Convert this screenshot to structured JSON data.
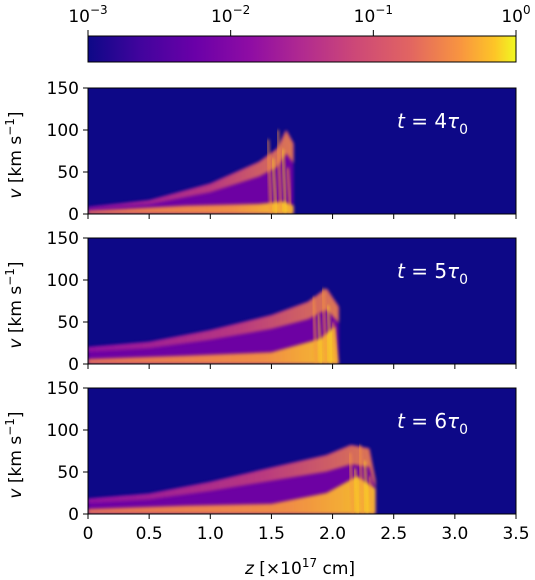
{
  "colorbar": {
    "scale": "log",
    "range": [
      0.001,
      1
    ],
    "colormap": "plasma",
    "tick_labels": [
      {
        "base": "10",
        "exp": "−3"
      },
      {
        "base": "10",
        "exp": "−2"
      },
      {
        "base": "10",
        "exp": "−1"
      },
      {
        "base": "10",
        "exp": "0"
      }
    ]
  },
  "colors": {
    "background": "#0d0887",
    "low": "#5c01a6",
    "mid": "#cc4778",
    "high": "#fdca26",
    "max": "#f0f921"
  },
  "chart_data": [
    {
      "type": "heatmap",
      "panel_label": {
        "lhs": "t",
        "eq": " = 4",
        "sym": "τ",
        "sub": "0"
      },
      "ylabel": {
        "text": "v [km s",
        "sup": "−1",
        "close": "]"
      },
      "xlim": [
        0,
        3.5
      ],
      "ylim": [
        0,
        150
      ],
      "y_ticks": [
        "0",
        "50",
        "100",
        "150"
      ],
      "features": {
        "front_z": 1.68,
        "upper_edge": [
          [
            0,
            8
          ],
          [
            0.5,
            16
          ],
          [
            1.0,
            36
          ],
          [
            1.4,
            62
          ],
          [
            1.55,
            78
          ],
          [
            1.62,
            100
          ],
          [
            1.68,
            84
          ]
        ],
        "dense_core": [
          [
            0,
            4
          ],
          [
            0.8,
            10
          ],
          [
            1.4,
            12
          ],
          [
            1.6,
            15
          ],
          [
            1.68,
            10
          ]
        ]
      }
    },
    {
      "type": "heatmap",
      "panel_label": {
        "lhs": "t",
        "eq": " = 5",
        "sym": "τ",
        "sub": "0"
      },
      "ylabel": {
        "text": "v [km s",
        "sup": "−1",
        "close": "]"
      },
      "xlim": [
        0,
        3.5
      ],
      "ylim": [
        0,
        150
      ],
      "y_ticks": [
        "0",
        "50",
        "100",
        "150"
      ],
      "features": {
        "front_z": 2.05,
        "upper_edge": [
          [
            0,
            20
          ],
          [
            0.5,
            26
          ],
          [
            1.0,
            40
          ],
          [
            1.5,
            58
          ],
          [
            1.8,
            74
          ],
          [
            1.95,
            90
          ],
          [
            2.05,
            68
          ]
        ],
        "dense_core": [
          [
            0,
            6
          ],
          [
            0.8,
            10
          ],
          [
            1.5,
            14
          ],
          [
            1.9,
            30
          ],
          [
            2.02,
            45
          ]
        ]
      }
    },
    {
      "type": "heatmap",
      "panel_label": {
        "lhs": "t",
        "eq": " = 6",
        "sym": "τ",
        "sub": "0"
      },
      "ylabel": {
        "text": "v [km s",
        "sup": "−1",
        "close": "]"
      },
      "xlim": [
        0,
        3.5
      ],
      "ylim": [
        0,
        150
      ],
      "y_ticks": [
        "0",
        "50",
        "100",
        "150"
      ],
      "x_ticks": [
        "0",
        "0.5",
        "1.0",
        "1.5",
        "2.0",
        "2.5",
        "3.0",
        "3.5"
      ],
      "features": {
        "front_z": 2.35,
        "upper_edge": [
          [
            0,
            18
          ],
          [
            0.5,
            24
          ],
          [
            1.0,
            38
          ],
          [
            1.5,
            55
          ],
          [
            1.95,
            70
          ],
          [
            2.15,
            82
          ],
          [
            2.3,
            78
          ],
          [
            2.35,
            40
          ]
        ],
        "dense_core": [
          [
            0,
            6
          ],
          [
            0.8,
            10
          ],
          [
            1.5,
            12
          ],
          [
            1.95,
            25
          ],
          [
            2.2,
            45
          ],
          [
            2.35,
            30
          ]
        ]
      }
    }
  ],
  "xlabel": {
    "var": "z",
    "pre": " [×10",
    "sup": "17",
    "post": " cm]"
  }
}
